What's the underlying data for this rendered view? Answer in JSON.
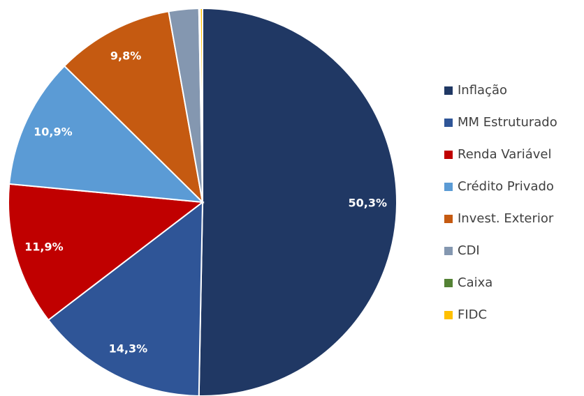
{
  "chart_data": {
    "type": "pie",
    "categories": [
      "Inflação",
      "MM Estruturado",
      "Renda Variável",
      "Crédito Privado",
      "Invest. Exterior",
      "CDI",
      "Caixa",
      "FIDC"
    ],
    "values": [
      50.3,
      14.3,
      11.9,
      10.9,
      9.8,
      2.5,
      0.1,
      0.2
    ],
    "value_labels": [
      "50,3%",
      "14,3%",
      "11,9%",
      "10,9%",
      "9,8%",
      null,
      null,
      null
    ],
    "colors": [
      "#203864",
      "#2f5597",
      "#c00000",
      "#5b9bd5",
      "#c55a11",
      "#8497b0",
      "#548235",
      "#ffc000"
    ],
    "legend": "right"
  }
}
